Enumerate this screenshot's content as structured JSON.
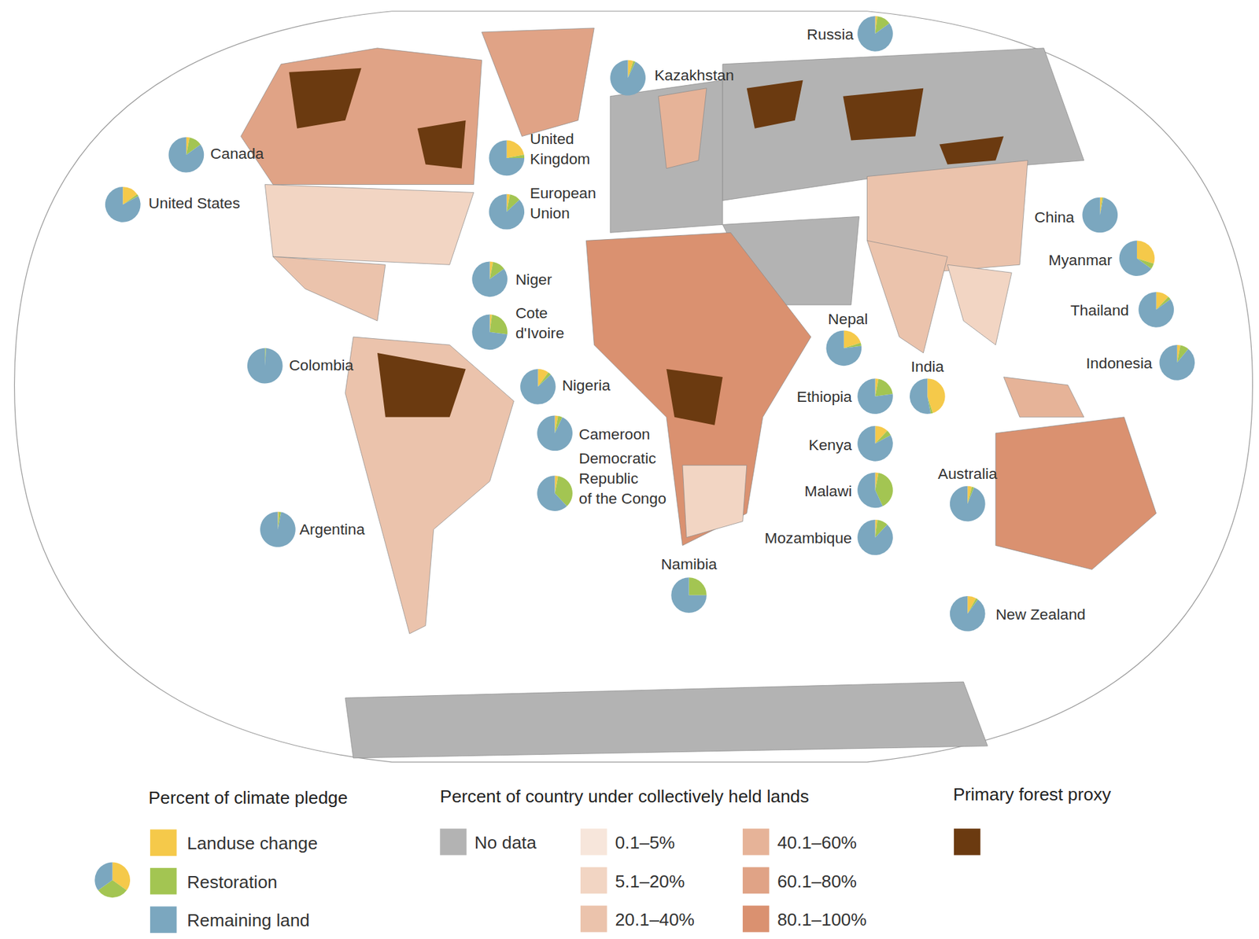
{
  "chart_data": {
    "type": "pie_map",
    "pie_legend": {
      "title": "Percent of climate pledge",
      "series": [
        {
          "name": "Landuse change",
          "color": "#f5c94a"
        },
        {
          "name": "Restoration",
          "color": "#a3c552"
        },
        {
          "name": "Remaining land",
          "color": "#7ba7bf"
        }
      ],
      "sample_values": [
        35,
        30,
        35
      ]
    },
    "bins_legend": {
      "title": "Percent of country under collectively held lands",
      "bins": [
        {
          "label": "No data",
          "color": "#b3b3b3"
        },
        {
          "label": "0.1–5%",
          "color": "#f7e6db"
        },
        {
          "label": "5.1–20%",
          "color": "#f2d5c3"
        },
        {
          "label": "20.1–40%",
          "color": "#ebc3ac"
        },
        {
          "label": "40.1–60%",
          "color": "#e6b398"
        },
        {
          "label": "60.1–80%",
          "color": "#e0a386"
        },
        {
          "label": "80.1–100%",
          "color": "#da9170"
        }
      ]
    },
    "forest_legend": {
      "title": "Primary forest proxy",
      "color": "#6b3a10"
    },
    "pies": [
      {
        "name": "Russia",
        "values": [
          2,
          13,
          85
        ]
      },
      {
        "name": "Kazakhstan",
        "values": [
          5,
          2,
          93
        ]
      },
      {
        "name": "Canada",
        "values": [
          3,
          12,
          85
        ]
      },
      {
        "name": "United\nKingdom",
        "values": [
          22,
          3,
          75
        ]
      },
      {
        "name": "United States",
        "values": [
          15,
          2,
          83
        ]
      },
      {
        "name": "European\nUnion",
        "values": [
          3,
          10,
          87
        ]
      },
      {
        "name": "Niger",
        "values": [
          3,
          12,
          85
        ]
      },
      {
        "name": "Cote\nd'Ivoire",
        "values": [
          2,
          25,
          73
        ]
      },
      {
        "name": "Nigeria",
        "values": [
          10,
          3,
          87
        ]
      },
      {
        "name": "Cameroon",
        "values": [
          3,
          4,
          93
        ]
      },
      {
        "name": "Democratic\nRepublic\nof the Congo",
        "values": [
          3,
          35,
          62
        ]
      },
      {
        "name": "Colombia",
        "values": [
          0,
          1,
          99
        ]
      },
      {
        "name": "Argentina",
        "values": [
          1,
          2,
          97
        ]
      },
      {
        "name": "Namibia",
        "values": [
          0,
          25,
          75
        ]
      },
      {
        "name": "China",
        "values": [
          2,
          1,
          97
        ]
      },
      {
        "name": "Myanmar",
        "values": [
          30,
          5,
          65
        ]
      },
      {
        "name": "Thailand",
        "values": [
          12,
          3,
          85
        ]
      },
      {
        "name": "Indonesia",
        "values": [
          3,
          8,
          89
        ]
      },
      {
        "name": "Nepal",
        "values": [
          20,
          3,
          77
        ]
      },
      {
        "name": "India",
        "values": [
          45,
          2,
          53
        ]
      },
      {
        "name": "Ethiopia",
        "values": [
          3,
          20,
          77
        ]
      },
      {
        "name": "Kenya",
        "values": [
          12,
          5,
          83
        ]
      },
      {
        "name": "Malawi",
        "values": [
          3,
          40,
          57
        ]
      },
      {
        "name": "Mozambique",
        "values": [
          2,
          10,
          88
        ]
      },
      {
        "name": "Australia",
        "values": [
          4,
          2,
          94
        ]
      },
      {
        "name": "New Zealand",
        "values": [
          8,
          2,
          90
        ]
      }
    ]
  }
}
